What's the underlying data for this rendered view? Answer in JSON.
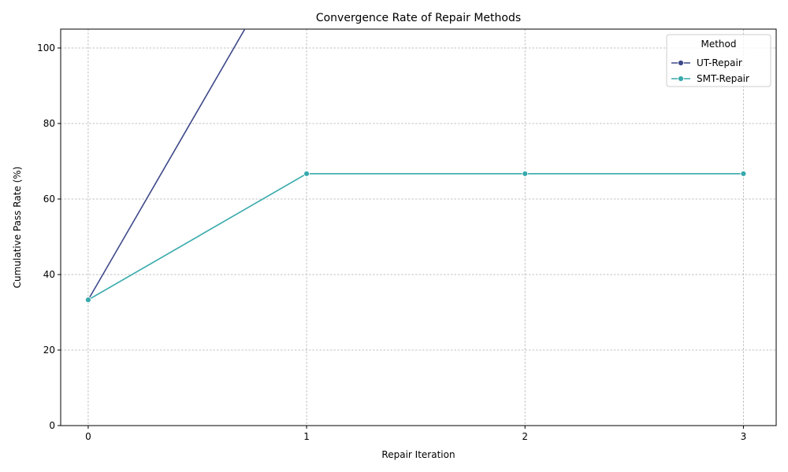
{
  "chart_data": {
    "type": "line",
    "title": "Convergence Rate of Repair Methods",
    "xlabel": "Repair Iteration",
    "ylabel": "Cumulative Pass Rate (%)",
    "x": [
      0,
      1,
      2,
      3
    ],
    "series": [
      {
        "name": "UT-Repair",
        "color": "#3e4989",
        "values": [
          33.3,
          133.3,
          null,
          null
        ]
      },
      {
        "name": "SMT-Repair",
        "color": "#38aaac",
        "values": [
          33.3,
          66.7,
          66.7,
          66.7
        ]
      }
    ],
    "xlim": [
      -0.126,
      3.15
    ],
    "xticks": [
      0,
      1,
      2,
      3
    ],
    "ylim": [
      0,
      105
    ],
    "yticks": [
      0,
      20,
      40,
      60,
      80,
      100
    ],
    "grid": true,
    "legend_title": "Method",
    "legend_position": "upper right"
  }
}
